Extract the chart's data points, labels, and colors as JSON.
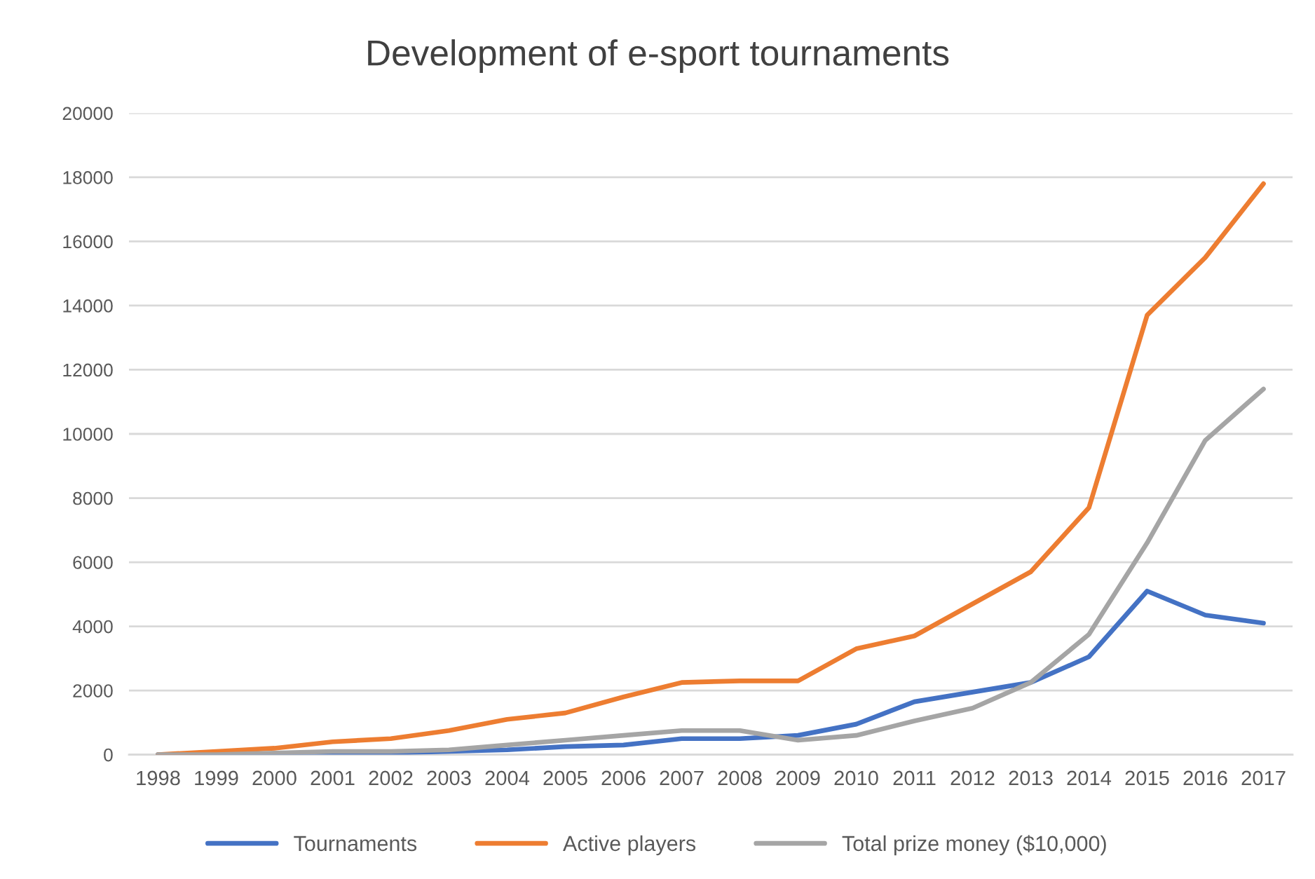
{
  "chart_data": {
    "type": "line",
    "title": "Development of e-sport tournaments",
    "categories": [
      "1998",
      "1999",
      "2000",
      "2001",
      "2002",
      "2003",
      "2004",
      "2005",
      "2006",
      "2007",
      "2008",
      "2009",
      "2010",
      "2011",
      "2012",
      "2013",
      "2014",
      "2015",
      "2016",
      "2017"
    ],
    "series": [
      {
        "name": "Tournaments",
        "color": "#4472c4",
        "values": [
          0,
          0,
          0,
          50,
          50,
          100,
          150,
          250,
          300,
          500,
          500,
          600,
          950,
          1650,
          1950,
          2250,
          3050,
          5100,
          4350,
          4100
        ]
      },
      {
        "name": "Active players",
        "color": "#ed7d31",
        "values": [
          0,
          100,
          200,
          400,
          500,
          750,
          1100,
          1300,
          1800,
          2250,
          2300,
          2300,
          3300,
          3700,
          4700,
          5700,
          7700,
          13700,
          15500,
          17800
        ]
      },
      {
        "name": "Total prize money ($10,000)",
        "color": "#a5a5a5",
        "values": [
          0,
          0,
          50,
          100,
          100,
          150,
          300,
          450,
          600,
          750,
          750,
          450,
          600,
          1050,
          1450,
          2250,
          3750,
          6600,
          9800,
          11400
        ]
      }
    ],
    "ylim": [
      0,
      20000
    ],
    "yticks": [
      0,
      2000,
      4000,
      6000,
      8000,
      10000,
      12000,
      14000,
      16000,
      18000,
      20000
    ],
    "grid": "y",
    "legend": "bottom",
    "marker": "none",
    "line_style": "solid"
  }
}
